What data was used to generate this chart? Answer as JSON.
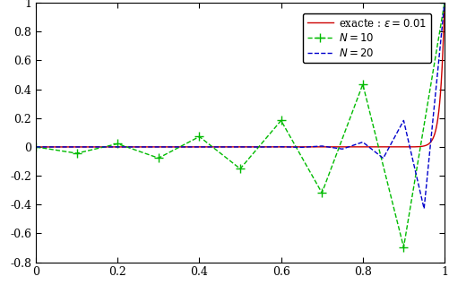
{
  "epsilon": 0.01,
  "N10": 10,
  "N20": 20,
  "xlim": [
    0,
    1
  ],
  "ylim": [
    -0.8,
    1.0
  ],
  "xticks": [
    0,
    0.2,
    0.4,
    0.6,
    0.8,
    1.0
  ],
  "yticks": [
    -0.8,
    -0.6,
    -0.4,
    -0.2,
    0.0,
    0.2,
    0.4,
    0.6,
    0.8,
    1.0
  ],
  "legend_labels": [
    "exacte : $\\varepsilon = 0.01$",
    "$N = 10$",
    "$N = 20$"
  ],
  "exact_color": "#cc0000",
  "n10_color": "#00bb00",
  "n20_color": "#0000cc",
  "background": "#ffffff",
  "figsize": [
    5.01,
    3.18
  ],
  "dpi": 100
}
